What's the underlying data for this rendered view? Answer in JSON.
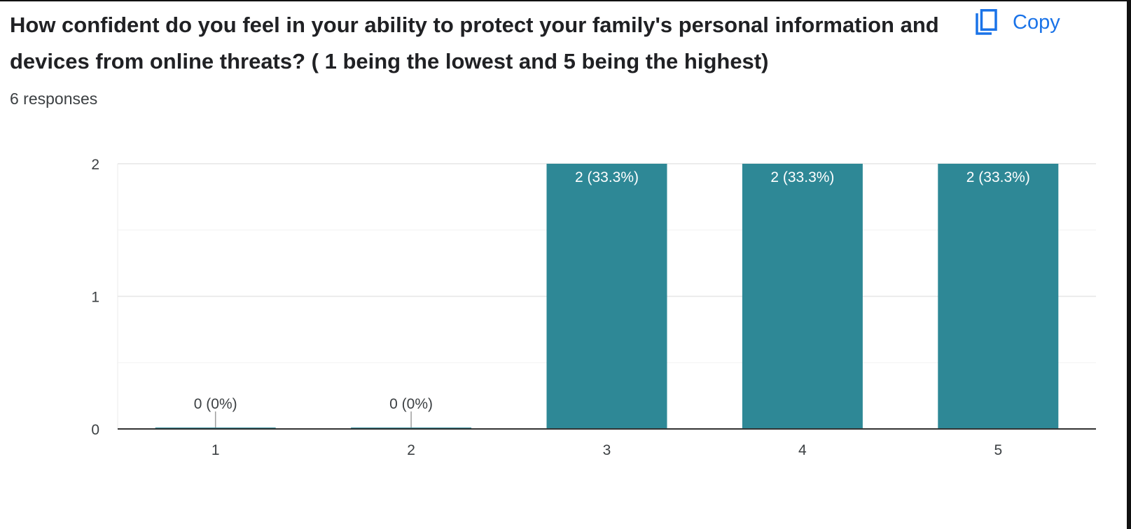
{
  "question": {
    "title": "How confident do you feel in your ability to protect your family's personal information and devices from online threats? ( 1 being the lowest and 5 being the highest)",
    "responses": "6 responses"
  },
  "copy_button": {
    "label": "Copy",
    "icon": "copy-icon"
  },
  "colors": {
    "bar": "#2e8896",
    "link": "#1a73e8",
    "text": "#202124"
  },
  "chart_data": {
    "type": "bar",
    "categories": [
      "1",
      "2",
      "3",
      "4",
      "5"
    ],
    "values": [
      0,
      0,
      2,
      2,
      2
    ],
    "data_labels": [
      "0 (0%)",
      "0 (0%)",
      "2 (33.3%)",
      "2 (33.3%)",
      "2 (33.3%)"
    ],
    "y_ticks": [
      "0",
      "1",
      "2"
    ],
    "ylim": [
      0,
      2
    ],
    "grid": true,
    "title": "",
    "xlabel": "",
    "ylabel": ""
  }
}
